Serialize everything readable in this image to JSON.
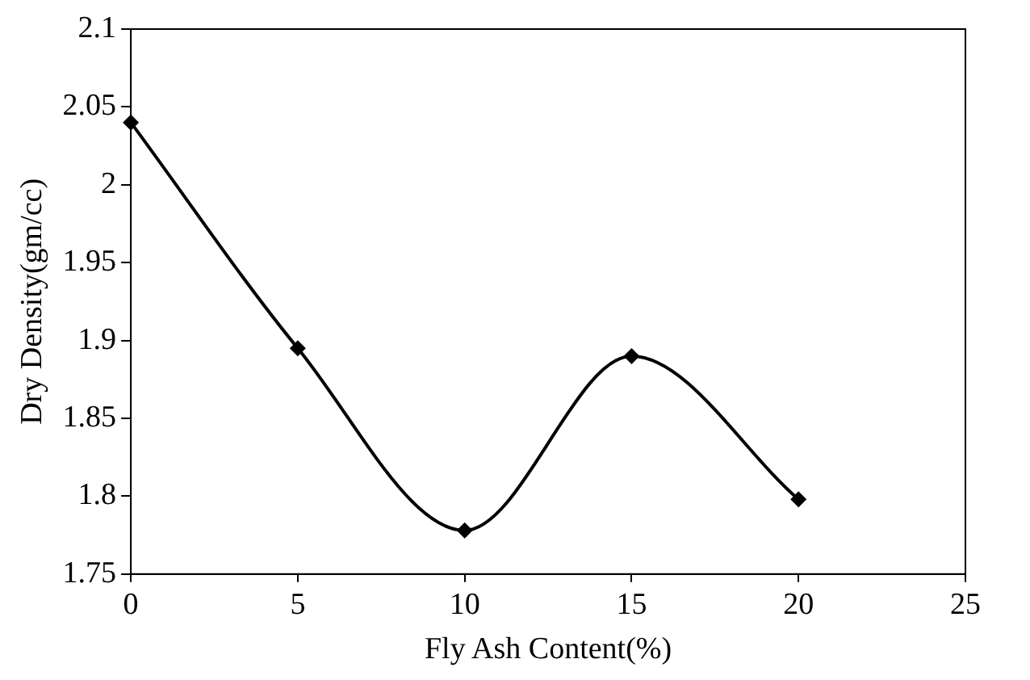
{
  "chart_data": {
    "type": "line",
    "xlabel": "Fly Ash Content(%)",
    "ylabel": "Dry Density(gm/cc)",
    "x": [
      0,
      5,
      10,
      15,
      20
    ],
    "series": [
      {
        "color": "#000000",
        "values": [
          2.04,
          1.895,
          1.778,
          1.89,
          1.798
        ]
      }
    ],
    "xlim": [
      0,
      25
    ],
    "xticks": [
      0,
      5,
      10,
      15,
      20,
      25
    ],
    "ylim": [
      1.75,
      2.1
    ],
    "yticks": [
      1.75,
      1.8,
      1.85,
      1.9,
      1.95,
      2,
      2.05,
      2.1
    ],
    "grid": false,
    "legend": false,
    "marker": "diamond",
    "line_style": "solid"
  }
}
